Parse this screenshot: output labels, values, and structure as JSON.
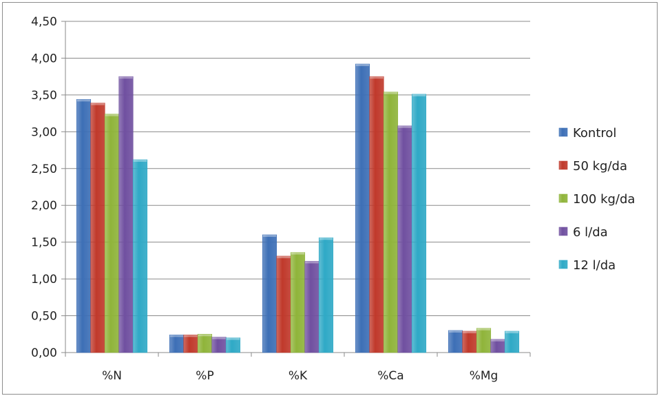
{
  "chart_data": {
    "type": "bar",
    "categories": [
      "%N",
      "%P",
      "%K",
      "%Ca",
      "%Mg"
    ],
    "series": [
      {
        "name": "Kontrol",
        "color": "#3d6fb6",
        "values": [
          3.44,
          0.24,
          1.6,
          3.92,
          0.3
        ]
      },
      {
        "name": "50 kg/da",
        "color": "#c0392b",
        "values": [
          3.39,
          0.24,
          1.31,
          3.75,
          0.29
        ]
      },
      {
        "name": "100 kg/da",
        "color": "#8fb43a",
        "values": [
          3.24,
          0.25,
          1.36,
          3.54,
          0.33
        ]
      },
      {
        "name": "6 l/da",
        "color": "#7050a0",
        "values": [
          3.75,
          0.21,
          1.24,
          3.08,
          0.18
        ]
      },
      {
        "name": "12 l/da",
        "color": "#2fa9c6",
        "values": [
          2.62,
          0.2,
          1.56,
          3.51,
          0.29
        ]
      }
    ],
    "yticks": [
      "0,00",
      "0,50",
      "1,00",
      "1,50",
      "2,00",
      "2,50",
      "3,00",
      "3,50",
      "4,00",
      "4,50"
    ],
    "ylim": [
      0,
      4.5
    ],
    "grid": true,
    "legend": "right"
  }
}
